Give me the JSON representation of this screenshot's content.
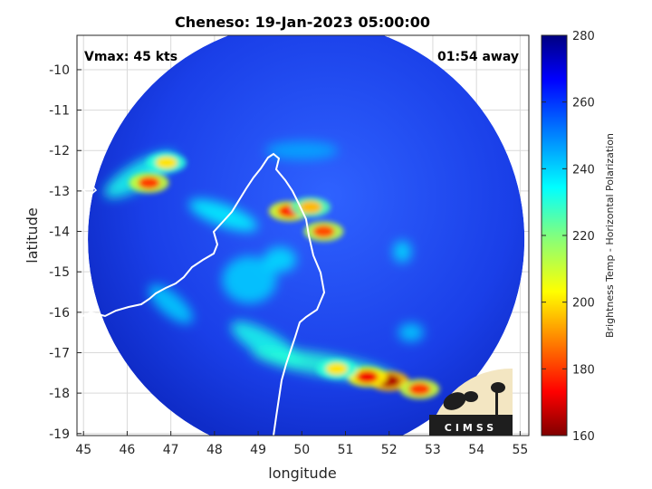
{
  "chart_data": {
    "type": "heatmap",
    "title": "Cheneso: 19-Jan-2023 05:00:00",
    "xlabel": "longitude",
    "ylabel": "latitude",
    "xlim": [
      44.85,
      55.2
    ],
    "ylim": [
      -19.05,
      -9.15
    ],
    "xticks": [
      45,
      46,
      47,
      48,
      49,
      50,
      51,
      52,
      53,
      54,
      55
    ],
    "yticks": [
      -10,
      -11,
      -12,
      -13,
      -14,
      -15,
      -16,
      -17,
      -18,
      -19
    ],
    "grid": true,
    "annotations": {
      "vmax": "Vmax: 45 kts",
      "away": "01:54 away"
    },
    "colorbar": {
      "label": "Brightness Temp - Horizontal Polarization",
      "range": [
        160,
        280
      ],
      "ticks": [
        280,
        260,
        240,
        220,
        200,
        180,
        160
      ]
    },
    "swath": {
      "center": [
        50.1,
        -14.2
      ],
      "radius_deg": 5.0
    },
    "hotspots": [
      {
        "lon": 49.7,
        "lat": -13.5,
        "tb": 178
      },
      {
        "lon": 50.2,
        "lat": -13.4,
        "tb": 195
      },
      {
        "lon": 50.5,
        "lat": -14.0,
        "tb": 182
      },
      {
        "lon": 46.5,
        "lat": -12.8,
        "tb": 180
      },
      {
        "lon": 46.9,
        "lat": -12.3,
        "tb": 200
      },
      {
        "lon": 52.0,
        "lat": -17.7,
        "tb": 165
      },
      {
        "lon": 51.5,
        "lat": -17.6,
        "tb": 172
      },
      {
        "lon": 52.7,
        "lat": -17.9,
        "tb": 180
      },
      {
        "lon": 50.8,
        "lat": -17.4,
        "tb": 200
      }
    ],
    "logo": {
      "text": "CIMSS",
      "corner": "bottom-right"
    }
  }
}
